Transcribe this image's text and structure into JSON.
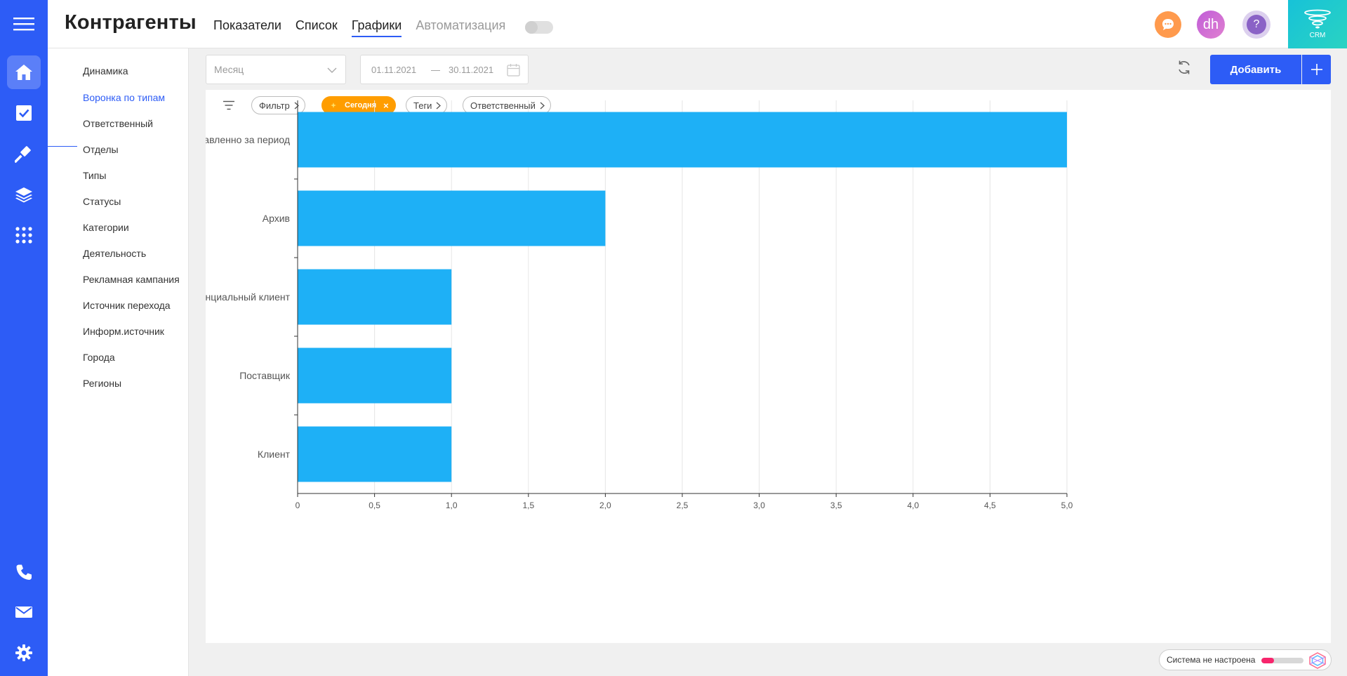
{
  "header": {
    "title": "Контрагенты",
    "tabs": [
      {
        "label": "Показатели"
      },
      {
        "label": "Список"
      },
      {
        "label": "Графики"
      },
      {
        "label": "Автоматизация"
      }
    ],
    "avatar_initials": "dh",
    "help_glyph": "?",
    "crm_label": "CRM"
  },
  "submenu": {
    "items": [
      {
        "label": "Динамика"
      },
      {
        "label": "Воронка по типам"
      },
      {
        "label": "Ответственный"
      },
      {
        "label": "Отделы"
      },
      {
        "label": "Типы"
      },
      {
        "label": "Статусы"
      },
      {
        "label": "Категории"
      },
      {
        "label": "Деятельность"
      },
      {
        "label": "Рекламная кампания"
      },
      {
        "label": "Источник перехода"
      },
      {
        "label": "Информ.источник"
      },
      {
        "label": "Города"
      },
      {
        "label": "Регионы"
      }
    ],
    "active_index": 1
  },
  "toolbar": {
    "period_placeholder": "Месяц",
    "date_from": "01.11.2021",
    "date_sep": "—",
    "date_to": "30.11.2021",
    "add_label": "Добавить"
  },
  "filters": {
    "chips": [
      {
        "label": "Фильтр"
      },
      {
        "label": "Сегодня"
      },
      {
        "label": "Теги"
      },
      {
        "label": "Ответственный"
      }
    ],
    "remove_glyph": "×"
  },
  "status": {
    "text": "Система не настроена",
    "progress": 0.3
  },
  "colors": {
    "accent": "#2d5cf6",
    "bar": "#1eb0f6",
    "chip_active": "#ff9d00",
    "status_fill": "#f7256c"
  },
  "icons": {
    "rail": [
      "menu-icon",
      "home-icon",
      "checkbox-icon",
      "hammer-icon",
      "layers-icon",
      "apps-grid-icon",
      "phone-icon",
      "mail-icon",
      "gear-icon"
    ],
    "header": [
      "chat-icon",
      "help-icon"
    ]
  },
  "chart_data": {
    "type": "bar",
    "orientation": "horizontal",
    "categories": [
      "Всего добавленно за период",
      "Архив",
      "Потенциальный клиент",
      "Поставщик",
      "Клиент"
    ],
    "values": [
      5,
      2,
      1,
      1,
      1
    ],
    "x_ticks": [
      "0",
      "0,5",
      "1,0",
      "1,5",
      "2,0",
      "2,5",
      "3,0",
      "3,5",
      "4,0",
      "4,5",
      "5,0"
    ],
    "xlim": [
      0,
      5
    ],
    "grid": true,
    "legend": "none"
  }
}
